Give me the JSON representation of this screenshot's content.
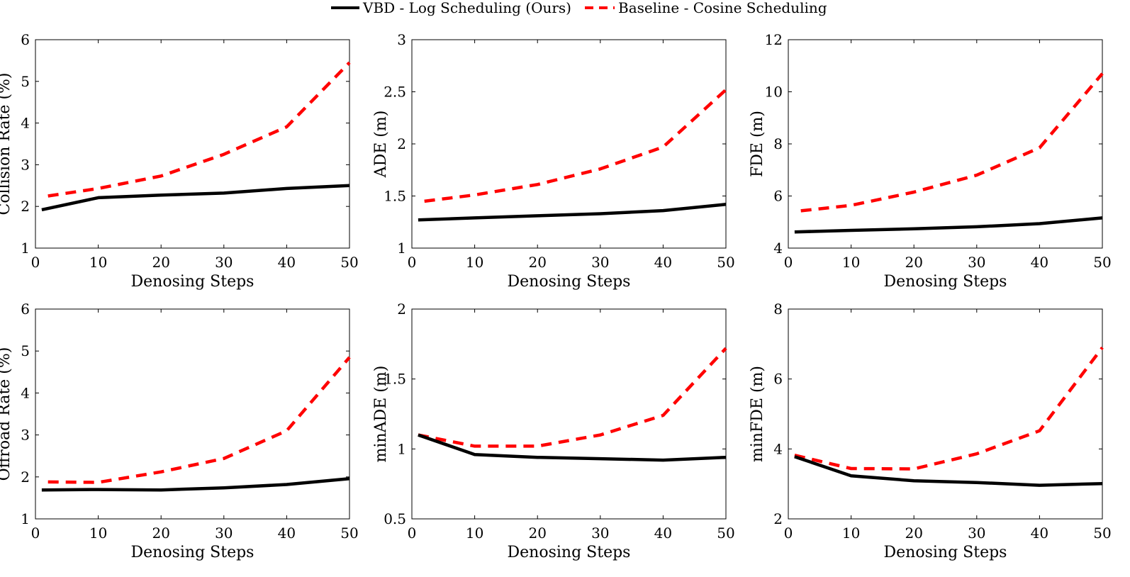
{
  "legend": {
    "position": "top-center",
    "entries": [
      {
        "label": "VBD - Log Scheduling (Ours)",
        "color": "#000000",
        "style": "solid"
      },
      {
        "label": "Baseline - Cosine Scheduling",
        "color": "#ff0000",
        "style": "dashed"
      }
    ]
  },
  "chart_data": [
    {
      "type": "line",
      "xlabel": "Denosing Steps",
      "ylabel": "Collision Rate (%)",
      "xlim": [
        0,
        50
      ],
      "ylim": [
        1,
        6
      ],
      "xticks": [
        0,
        10,
        20,
        30,
        40,
        50
      ],
      "yticks": [
        1,
        2,
        3,
        4,
        5,
        6
      ],
      "grid": false,
      "series": [
        {
          "name": "VBD - Log Scheduling (Ours)",
          "color": "#000000",
          "style": "solid",
          "x": [
            1,
            10,
            20,
            30,
            40,
            50
          ],
          "y": [
            1.92,
            2.21,
            2.27,
            2.32,
            2.43,
            2.5
          ]
        },
        {
          "name": "Baseline - Cosine Scheduling",
          "color": "#ff0000",
          "style": "dashed",
          "x": [
            2,
            10,
            20,
            30,
            40,
            50
          ],
          "y": [
            2.25,
            2.43,
            2.73,
            3.25,
            3.91,
            5.45
          ]
        }
      ]
    },
    {
      "type": "line",
      "xlabel": "Denosing Steps",
      "ylabel": "ADE (m)",
      "xlim": [
        0,
        50
      ],
      "ylim": [
        1,
        3
      ],
      "xticks": [
        0,
        10,
        20,
        30,
        40,
        50
      ],
      "yticks": [
        "1",
        "1.5",
        "2",
        "2.5",
        "3"
      ],
      "grid": false,
      "series": [
        {
          "name": "VBD - Log Scheduling (Ours)",
          "color": "#000000",
          "style": "solid",
          "x": [
            1,
            10,
            20,
            30,
            40,
            50
          ],
          "y": [
            1.27,
            1.29,
            1.31,
            1.33,
            1.36,
            1.42
          ]
        },
        {
          "name": "Baseline - Cosine Scheduling",
          "color": "#ff0000",
          "style": "dashed",
          "x": [
            2,
            10,
            20,
            30,
            40,
            50
          ],
          "y": [
            1.45,
            1.51,
            1.61,
            1.76,
            1.97,
            2.52
          ]
        }
      ]
    },
    {
      "type": "line",
      "xlabel": "Denosing Steps",
      "ylabel": "FDE (m)",
      "xlim": [
        0,
        50
      ],
      "ylim": [
        4,
        12
      ],
      "xticks": [
        0,
        10,
        20,
        30,
        40,
        50
      ],
      "yticks": [
        4,
        6,
        8,
        10,
        12
      ],
      "grid": false,
      "series": [
        {
          "name": "VBD - Log Scheduling (Ours)",
          "color": "#000000",
          "style": "solid",
          "x": [
            1,
            10,
            20,
            30,
            40,
            50
          ],
          "y": [
            4.62,
            4.68,
            4.74,
            4.82,
            4.94,
            5.16
          ]
        },
        {
          "name": "Baseline - Cosine Scheduling",
          "color": "#ff0000",
          "style": "dashed",
          "x": [
            2,
            10,
            20,
            30,
            40,
            50
          ],
          "y": [
            5.43,
            5.64,
            6.15,
            6.8,
            7.85,
            10.7
          ]
        }
      ]
    },
    {
      "type": "line",
      "xlabel": "Denosing Steps",
      "ylabel": "Offroad Rate (%)",
      "xlim": [
        0,
        50
      ],
      "ylim": [
        1,
        6
      ],
      "xticks": [
        0,
        10,
        20,
        30,
        40,
        50
      ],
      "yticks": [
        1,
        2,
        3,
        4,
        5,
        6
      ],
      "grid": false,
      "series": [
        {
          "name": "VBD - Log Scheduling (Ours)",
          "color": "#000000",
          "style": "solid",
          "x": [
            1,
            10,
            20,
            30,
            40,
            50
          ],
          "y": [
            1.69,
            1.7,
            1.69,
            1.74,
            1.82,
            1.96
          ]
        },
        {
          "name": "Baseline - Cosine Scheduling",
          "color": "#ff0000",
          "style": "dashed",
          "x": [
            2,
            10,
            20,
            30,
            40,
            50
          ],
          "y": [
            1.88,
            1.87,
            2.12,
            2.44,
            3.1,
            4.85
          ]
        }
      ]
    },
    {
      "type": "line",
      "xlabel": "Denosing Steps",
      "ylabel": "minADE (m)",
      "xlim": [
        0,
        50
      ],
      "ylim": [
        0.5,
        2
      ],
      "xticks": [
        0,
        10,
        20,
        30,
        40,
        50
      ],
      "yticks": [
        "0.5",
        "1",
        "1.5",
        "2"
      ],
      "grid": false,
      "series": [
        {
          "name": "VBD - Log Scheduling (Ours)",
          "color": "#000000",
          "style": "solid",
          "x": [
            1,
            10,
            20,
            30,
            40,
            50
          ],
          "y": [
            1.1,
            0.96,
            0.94,
            0.93,
            0.92,
            0.94
          ]
        },
        {
          "name": "Baseline - Cosine Scheduling",
          "color": "#ff0000",
          "style": "dashed",
          "x": [
            1,
            10,
            20,
            30,
            40,
            50
          ],
          "y": [
            1.1,
            1.02,
            1.02,
            1.1,
            1.24,
            1.72
          ]
        }
      ]
    },
    {
      "type": "line",
      "xlabel": "Denosing Steps",
      "ylabel": "minFDE (m)",
      "xlim": [
        0,
        50
      ],
      "ylim": [
        2,
        8
      ],
      "xticks": [
        0,
        10,
        20,
        30,
        40,
        50
      ],
      "yticks": [
        2,
        4,
        6,
        8
      ],
      "grid": false,
      "series": [
        {
          "name": "VBD - Log Scheduling (Ours)",
          "color": "#000000",
          "style": "solid",
          "x": [
            1,
            10,
            20,
            30,
            40,
            50
          ],
          "y": [
            3.78,
            3.23,
            3.09,
            3.04,
            2.96,
            3.01
          ]
        },
        {
          "name": "Baseline - Cosine Scheduling",
          "color": "#ff0000",
          "style": "dashed",
          "x": [
            1,
            10,
            20,
            30,
            40,
            50
          ],
          "y": [
            3.82,
            3.44,
            3.43,
            3.86,
            4.52,
            6.9
          ]
        }
      ]
    }
  ]
}
